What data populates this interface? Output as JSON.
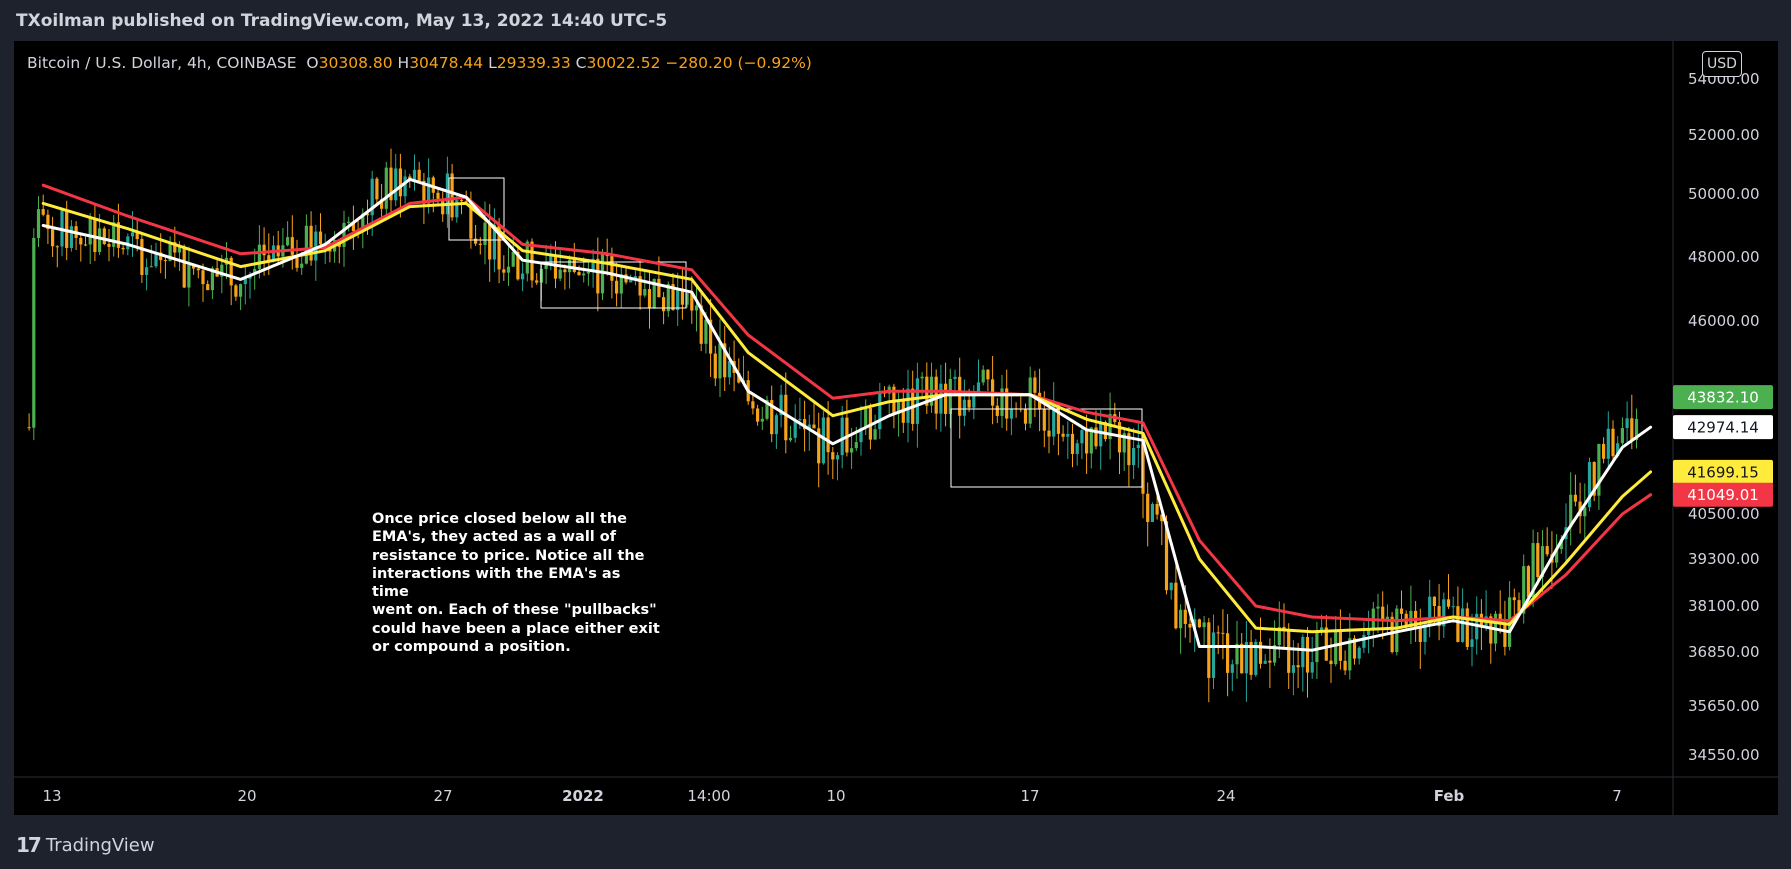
{
  "header": {
    "published": "TXoilman published on TradingView.com, May 13, 2022 14:40 UTC-5"
  },
  "legend": {
    "symbol": "Bitcoin / U.S. Dollar, 4h, COINBASE",
    "o_label": "O",
    "o": "30308.80",
    "h_label": "H",
    "h": "30478.44",
    "l_label": "L",
    "l": "29339.33",
    "c_label": "C",
    "c": "30022.52",
    "change": "−280.20 (−0.92%)"
  },
  "currency": "USD",
  "annotation": "Once price closed below all the\nEMA's, they acted as a wall of\nresistance to price. Notice all the\ninteractions with the EMA's as time\nwent on. Each of these \"pullbacks\"\ncould have been a place either exit\nor compound a position.",
  "footer": {
    "brand": "TradingView",
    "brand_mark": "17"
  },
  "colors": {
    "up": "#26a69a",
    "up_alt": "#4caf50",
    "down": "#f7a21b",
    "ema_white": "#ffffff",
    "ema_yellow": "#ffeb3b",
    "ema_red": "#f23645"
  },
  "chart_data": {
    "type": "line",
    "title": "",
    "xlabel": "",
    "ylabel": "",
    "x_ticks": [
      "13",
      "20",
      "27",
      "2022",
      "14:00",
      "10",
      "17",
      "24",
      "Feb",
      "7"
    ],
    "y_ticks": [
      "54000.00",
      "52000.00",
      "50000.00",
      "48000.00",
      "46000.00",
      "40500.00",
      "39300.00",
      "38100.00",
      "36850.00",
      "35650.00",
      "34550.00"
    ],
    "ylim": [
      34000,
      54500
    ],
    "price_labels": [
      {
        "value": "43832.10",
        "series": "price",
        "color": "#4caf50"
      },
      {
        "value": "42974.14",
        "series": "EMA white",
        "color": "#ffffff"
      },
      {
        "value": "41699.15",
        "series": "EMA yellow",
        "color": "#ffeb3b"
      },
      {
        "value": "41049.01",
        "series": "EMA red",
        "color": "#f23645"
      }
    ],
    "series": [
      {
        "color": "#ffffff",
        "x": [
          "Dec 13",
          "Dec 16",
          "Dec 20",
          "Dec 23",
          "Dec 26",
          "Dec 28",
          "Dec 30",
          "Jan 2",
          "Jan 5",
          "Jan 7",
          "Jan 10",
          "Jan 12",
          "Jan 14",
          "Jan 17",
          "Jan 19",
          "Jan 21",
          "Jan 23",
          "Jan 25",
          "Jan 27",
          "Jan 30",
          "Feb 1",
          "Feb 3",
          "Feb 5",
          "Feb 7",
          "Feb 8"
        ],
        "values": [
          49000,
          48400,
          47300,
          48400,
          50500,
          49900,
          47900,
          47500,
          46900,
          44000,
          42500,
          43300,
          43900,
          43900,
          42900,
          42600,
          37000,
          37000,
          36900,
          37400,
          37700,
          37400,
          40000,
          42400,
          42974
        ]
      },
      {
        "color": "#ffeb3b",
        "x": [
          "Dec 13",
          "Dec 16",
          "Dec 20",
          "Dec 23",
          "Dec 26",
          "Dec 28",
          "Dec 30",
          "Jan 2",
          "Jan 5",
          "Jan 7",
          "Jan 10",
          "Jan 12",
          "Jan 14",
          "Jan 17",
          "Jan 19",
          "Jan 21",
          "Jan 23",
          "Jan 25",
          "Jan 27",
          "Jan 30",
          "Feb 1",
          "Feb 3",
          "Feb 5",
          "Feb 7",
          "Feb 8"
        ],
        "values": [
          49700,
          48900,
          47700,
          48200,
          49600,
          49700,
          48200,
          47800,
          47300,
          45100,
          43300,
          43700,
          43900,
          43900,
          43200,
          42800,
          39300,
          37500,
          37400,
          37500,
          37800,
          37600,
          39200,
          41000,
          41699
        ]
      },
      {
        "color": "#f23645",
        "x": [
          "Dec 13",
          "Dec 16",
          "Dec 20",
          "Dec 23",
          "Dec 26",
          "Dec 28",
          "Dec 30",
          "Jan 2",
          "Jan 5",
          "Jan 7",
          "Jan 10",
          "Jan 12",
          "Jan 14",
          "Jan 17",
          "Jan 19",
          "Jan 21",
          "Jan 23",
          "Jan 25",
          "Jan 27",
          "Jan 30",
          "Feb 1",
          "Feb 3",
          "Feb 5",
          "Feb 7",
          "Feb 8"
        ],
        "values": [
          50300,
          49300,
          48100,
          48300,
          49700,
          49900,
          48400,
          48100,
          47600,
          45600,
          43800,
          44000,
          44000,
          43900,
          43400,
          43100,
          39800,
          38100,
          37800,
          37700,
          37800,
          37700,
          38900,
          40500,
          41049
        ]
      }
    ]
  }
}
